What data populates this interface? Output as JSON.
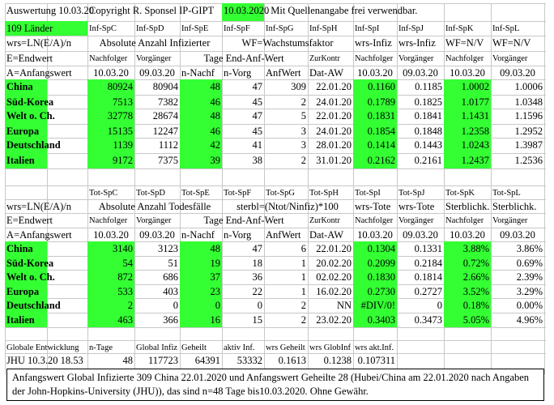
{
  "rows": [
    [
      "Auswertung 10.03.20",
      null,
      "Copyright R. Sponsel IP-GIPT ",
      null,
      null,
      "10.03.2020",
      ". Mit Quellenangabe frei verwendbar.",
      null,
      null,
      null,
      null,
      null
    ],
    [
      "109 Länder",
      null,
      "Inf-SpC",
      "Inf-SpD",
      "Inf-SpE",
      "Inf-SpF",
      "Inf-SpG",
      "Inf-SpH",
      "Inf-SpI",
      "Inf-SpJ",
      "Inf-SpK",
      "Inf-SpL"
    ],
    [
      "wrs=LN(E/A)/n",
      null,
      "Absolute Anzahl Infizierter",
      null,
      null,
      "WF=Wachstumsfaktor",
      null,
      null,
      "wrs-Infiz",
      "wrs-Infiz",
      "WF=N/V",
      "WF=N/V"
    ],
    [
      "E=Endwert",
      null,
      "Nachfolger",
      "Vorgänger",
      "Tage End-Anf-Wert",
      null,
      null,
      "ZurKontr",
      "Nachfolger",
      "Vorgänger",
      "Nachfolger",
      "Vorgänger"
    ],
    [
      "A=Anfangswert",
      null,
      "10.03.20",
      "09.03.20",
      "n-Nachf",
      "n-Vorg",
      "AnfWert",
      "Dat-AW",
      "10.03.20",
      "09.03.20",
      "10.03.20",
      "09.03.20"
    ],
    [
      "China",
      null,
      "80924",
      "80904",
      "48",
      "47",
      "309",
      "22.01.20",
      "0.1160",
      "0.1185",
      "1.0002",
      "1.0006"
    ],
    [
      "Süd-Korea",
      null,
      "7513",
      "7382",
      "46",
      "45",
      "2",
      "24.01.20",
      "0.1789",
      "0.1825",
      "1.0177",
      "1.0348"
    ],
    [
      "Welt o. Ch.",
      null,
      "32778",
      "28674",
      "48",
      "47",
      "5",
      "22.01.20",
      "0.1831",
      "0.1841",
      "1.1431",
      "1.1596"
    ],
    [
      "Europa",
      null,
      "15135",
      "12247",
      "46",
      "45",
      "3",
      "24.01.20",
      "0.1854",
      "0.1848",
      "1.2358",
      "1.2952"
    ],
    [
      "Deutschland",
      null,
      "1139",
      "1112",
      "42",
      "41",
      "3",
      "28.01.20",
      "0.1414",
      "0.1443",
      "1.0243",
      "1.3987"
    ],
    [
      "Italien",
      null,
      "9172",
      "7375",
      "39",
      "38",
      "2",
      "31.01.20",
      "0.2162",
      "0.2161",
      "1.2437",
      "1.2536"
    ],
    [
      null,
      null,
      null,
      null,
      null,
      null,
      null,
      null,
      null,
      null,
      null,
      null
    ],
    [
      null,
      null,
      "Tot-SpC",
      "Tot-SpD",
      "Tot-SpE",
      "Tot-SpF",
      "Tot-SpG",
      "Tot-SpH",
      "Tot-SpI",
      "Tot-SpJ",
      "Tot-SpK",
      "Tot-SpL"
    ],
    [
      "wrs=LN(E/A)/n",
      null,
      "Absolute Anzahl Todesfälle",
      null,
      null,
      "sterbl=(Ntot/Ninfiz)*100",
      null,
      null,
      "wrs-Tote",
      "wrs-Tote",
      "Sterblichk.",
      "Sterblichk."
    ],
    [
      "E=Endwert",
      null,
      "Nachfolger",
      "Vorgänger",
      "Tage End-Anf-Wert",
      null,
      null,
      "ZurKontr",
      "Nachfolger",
      "Vorgänger",
      "Nachfolger",
      "Vorgänger"
    ],
    [
      "A=Anfangswert",
      null,
      "10.03.20",
      "09.03.20",
      "n-Nachf",
      "n-Vorg",
      "AnfWert",
      "Dat-AW",
      "10.03.20",
      "09.03.20",
      "10.03.20",
      "09.03.20"
    ],
    [
      "China",
      null,
      "3140",
      "3123",
      "48",
      "47",
      "6",
      "22.01.20",
      "0.1304",
      "0.1331",
      "3.88%",
      "3.86%"
    ],
    [
      "Süd-Korea",
      null,
      "54",
      "51",
      "19",
      "18",
      "1",
      "20.02.20",
      "0.2099",
      "0.2184",
      "0.72%",
      "0.69%"
    ],
    [
      "Welt o. Ch.",
      null,
      "872",
      "686",
      "37",
      "36",
      "1",
      "02.02.20",
      "0.1830",
      "0.1814",
      "2.66%",
      "2.39%"
    ],
    [
      "Europa",
      null,
      "533",
      "403",
      "23",
      "22",
      "1",
      "16.02.20",
      "0.2730",
      "0.2727",
      "3.52%",
      "3.29%"
    ],
    [
      "Deutschland",
      null,
      "2",
      "0",
      "0",
      "0",
      "2",
      "NN",
      "#DIV/0!",
      "0",
      "0.18%",
      "0.00%"
    ],
    [
      "Italien",
      null,
      "463",
      "366",
      "16",
      "15",
      "2",
      "23.02.20",
      "0.3403",
      "0.3473",
      "5.05%",
      "4.96%"
    ],
    [
      null,
      null,
      null,
      null,
      null,
      null,
      null,
      null,
      null,
      null,
      null,
      null
    ],
    [
      "Globale Entwicklung",
      null,
      "n-Tage",
      "Global Infiz",
      "Geheilt",
      "aktiv Inf.",
      "wrs Geheilt",
      "wrs GlobInf",
      "wrs akt.Inf.",
      null,
      null,
      null
    ],
    [
      "JHU 10.3.20 18.53",
      null,
      "48",
      "117723",
      "64391",
      "53332",
      "0.1613",
      "0.1238",
      "0.107311",
      null,
      null,
      null
    ]
  ],
  "note": "Anfangswert Global Infizierte 309 China 22.01.2020 und Anfangswert Geheilte 28 (Hubei/China am 22.01.2020 nach Angaben der John-Hopkins-University (JHU)), das sind n=48 Tage bis10.03.2020. Ohne Gewähr."
}
